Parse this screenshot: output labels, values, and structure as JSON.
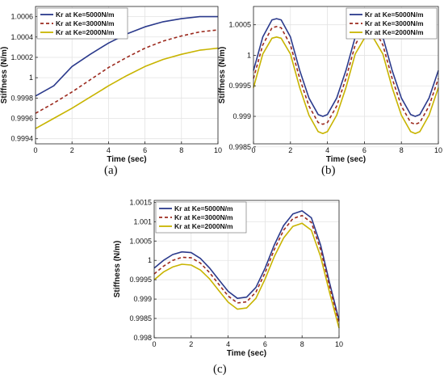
{
  "chart_data": [
    {
      "type": "line",
      "xlabel": "Time (sec)",
      "ylabel": "Stiffness (N/m)",
      "xlim": [
        0,
        10
      ],
      "ylim": [
        0.99935,
        1.0007
      ],
      "xticks": [
        0,
        2,
        4,
        6,
        8,
        10
      ],
      "yticks": [
        0.9994,
        0.9996,
        0.9998,
        1,
        1.0002,
        1.0004,
        1.0006
      ],
      "ytick_labels": [
        "0.9994",
        "0.9996",
        "0.9998",
        "1",
        "1.0002",
        "1.0004",
        "1.0006"
      ],
      "grid": true,
      "legend": "top-left",
      "series": [
        {
          "name": "Kr at Ke=5000N/m",
          "color": "#2b3a8c",
          "dash": "solid",
          "x": [
            0,
            1,
            2,
            3,
            4,
            5,
            6,
            7,
            8,
            9,
            10
          ],
          "y": [
            0.99982,
            0.99992,
            1.00011,
            1.00023,
            1.00034,
            1.00043,
            1.0005,
            1.00055,
            1.00058,
            1.0006,
            1.0006
          ]
        },
        {
          "name": "Kr at Ke=3000N/m",
          "color": "#9c2a1e",
          "dash": "dashed",
          "x": [
            0,
            1,
            2,
            3,
            4,
            5,
            6,
            7,
            8,
            9,
            10
          ],
          "y": [
            0.99965,
            0.99975,
            0.99986,
            0.99998,
            1.0001,
            1.0002,
            1.00029,
            1.00036,
            1.00041,
            1.00045,
            1.00047
          ]
        },
        {
          "name": "Kr at Ke=2000N/m",
          "color": "#c8b400",
          "dash": "solid",
          "x": [
            0,
            1,
            2,
            3,
            4,
            5,
            6,
            7,
            8,
            9,
            10
          ],
          "y": [
            0.9995,
            0.9996,
            0.9997,
            0.99981,
            0.99992,
            1.00002,
            1.00011,
            1.00018,
            1.00023,
            1.00027,
            1.00029
          ]
        }
      ]
    },
    {
      "type": "line",
      "xlabel": "Time (sec)",
      "ylabel": "Stiffness (N/m)",
      "xlim": [
        0,
        10
      ],
      "ylim": [
        0.99855,
        1.0008
      ],
      "xticks": [
        0,
        2,
        4,
        6,
        8,
        10
      ],
      "yticks": [
        0.9985,
        0.999,
        0.9995,
        1,
        1.0005
      ],
      "ytick_labels": [
        "0.9985",
        "0.999",
        "0.9995",
        "1",
        "1.0005"
      ],
      "grid": true,
      "legend": "top-right",
      "series": [
        {
          "name": "Kr at Ke=5000N/m",
          "color": "#2b3a8c",
          "dash": "solid",
          "x": [
            0,
            0.5,
            1,
            1.25,
            1.5,
            2,
            2.5,
            3,
            3.5,
            3.75,
            4,
            4.5,
            5,
            5.5,
            6,
            6.25,
            6.5,
            7,
            7.5,
            8,
            8.5,
            8.75,
            9,
            9.5,
            10
          ],
          "y": [
            0.99975,
            1.0003,
            1.00058,
            1.0006,
            1.00058,
            1.0003,
            0.99975,
            0.9993,
            0.99903,
            0.999,
            0.99903,
            0.9993,
            0.99975,
            1.0003,
            1.00058,
            1.0006,
            1.00058,
            1.0003,
            0.99975,
            0.9993,
            0.99903,
            0.999,
            0.99903,
            0.9993,
            0.99975
          ]
        },
        {
          "name": "Kr at Ke=3000N/m",
          "color": "#9c2a1e",
          "dash": "dashed",
          "x": [
            0,
            0.5,
            1,
            1.25,
            1.5,
            2,
            2.5,
            3,
            3.5,
            3.75,
            4,
            4.5,
            5,
            5.5,
            6,
            6.25,
            6.5,
            7,
            7.5,
            8,
            8.5,
            8.75,
            9,
            9.5,
            10
          ],
          "y": [
            0.99962,
            1.00017,
            1.00045,
            1.00047,
            1.00045,
            1.00017,
            0.99962,
            0.99917,
            0.9989,
            0.99887,
            0.9989,
            0.99917,
            0.99962,
            1.00017,
            1.00045,
            1.00047,
            1.00045,
            1.00017,
            0.99962,
            0.99917,
            0.9989,
            0.99887,
            0.9989,
            0.99917,
            0.99962
          ]
        },
        {
          "name": "Kr at Ke=2000N/m",
          "color": "#c8b400",
          "dash": "solid",
          "x": [
            0,
            0.5,
            1,
            1.25,
            1.5,
            2,
            2.5,
            3,
            3.5,
            3.75,
            4,
            4.5,
            5,
            5.5,
            6,
            6.25,
            6.5,
            7,
            7.5,
            8,
            8.5,
            8.75,
            9,
            9.5,
            10
          ],
          "y": [
            0.99947,
            1.00002,
            1.00028,
            1.0003,
            1.00028,
            1.00002,
            0.99947,
            0.99902,
            0.99875,
            0.99872,
            0.99875,
            0.99902,
            0.99947,
            1.00002,
            1.00028,
            1.0003,
            1.00028,
            1.00002,
            0.99947,
            0.99902,
            0.99875,
            0.99872,
            0.99875,
            0.99902,
            0.99947
          ]
        }
      ]
    },
    {
      "type": "line",
      "xlabel": "Time (sec)",
      "ylabel": "Stiffness (N/m)",
      "xlim": [
        0,
        10
      ],
      "ylim": [
        0.998,
        1.00155
      ],
      "xticks": [
        0,
        2,
        4,
        6,
        8,
        10
      ],
      "yticks": [
        0.998,
        0.9985,
        0.999,
        0.9995,
        1,
        1.0005,
        1.001,
        1.0015
      ],
      "ytick_labels": [
        "0.998",
        "0.9985",
        "0.999",
        "0.9995",
        "1",
        "1.0005",
        "1.001",
        "1.0015"
      ],
      "grid": true,
      "legend": "top-left",
      "series": [
        {
          "name": "Kr at Ke=5000N/m",
          "color": "#2b3a8c",
          "dash": "solid",
          "x": [
            0,
            0.5,
            1,
            1.5,
            2,
            2.5,
            3,
            3.5,
            4,
            4.5,
            5,
            5.5,
            6,
            6.5,
            7,
            7.5,
            8,
            8.5,
            9,
            9.5,
            10
          ],
          "y": [
            0.9998,
            1.0,
            1.00015,
            1.00022,
            1.0002,
            1.00005,
            0.9998,
            0.9995,
            0.9992,
            0.99902,
            0.99905,
            0.9993,
            0.9998,
            1.0004,
            1.0009,
            1.0012,
            1.00128,
            1.0011,
            1.0004,
            0.9994,
            0.99845
          ]
        },
        {
          "name": "Kr at Ke=3000N/m",
          "color": "#9c2a1e",
          "dash": "dashed",
          "x": [
            0,
            0.5,
            1,
            1.5,
            2,
            2.5,
            3,
            3.5,
            4,
            4.5,
            5,
            5.5,
            6,
            6.5,
            7,
            7.5,
            8,
            8.5,
            9,
            9.5,
            10
          ],
          "y": [
            0.99965,
            0.99985,
            1.0,
            1.00008,
            1.00007,
            0.99993,
            0.99968,
            0.99938,
            0.99908,
            0.9989,
            0.99893,
            0.99918,
            0.99968,
            1.00028,
            1.00078,
            1.00108,
            1.00116,
            1.00098,
            1.00028,
            0.9993,
            0.99838
          ]
        },
        {
          "name": "Kr at Ke=2000N/m",
          "color": "#c8b400",
          "dash": "solid",
          "x": [
            0,
            0.5,
            1,
            1.5,
            2,
            2.5,
            3,
            3.5,
            4,
            4.5,
            5,
            5.5,
            6,
            6.5,
            7,
            7.5,
            8,
            8.5,
            9,
            9.5,
            10
          ],
          "y": [
            0.9995,
            0.9997,
            0.99983,
            0.9999,
            0.99988,
            0.99975,
            0.99952,
            0.99922,
            0.99892,
            0.99874,
            0.99877,
            0.99902,
            0.99952,
            1.0001,
            1.00058,
            1.00088,
            1.00096,
            1.00078,
            1.0001,
            0.99915,
            0.99825
          ]
        }
      ]
    }
  ],
  "captions": [
    "(a)",
    "(b)",
    "(c)"
  ]
}
